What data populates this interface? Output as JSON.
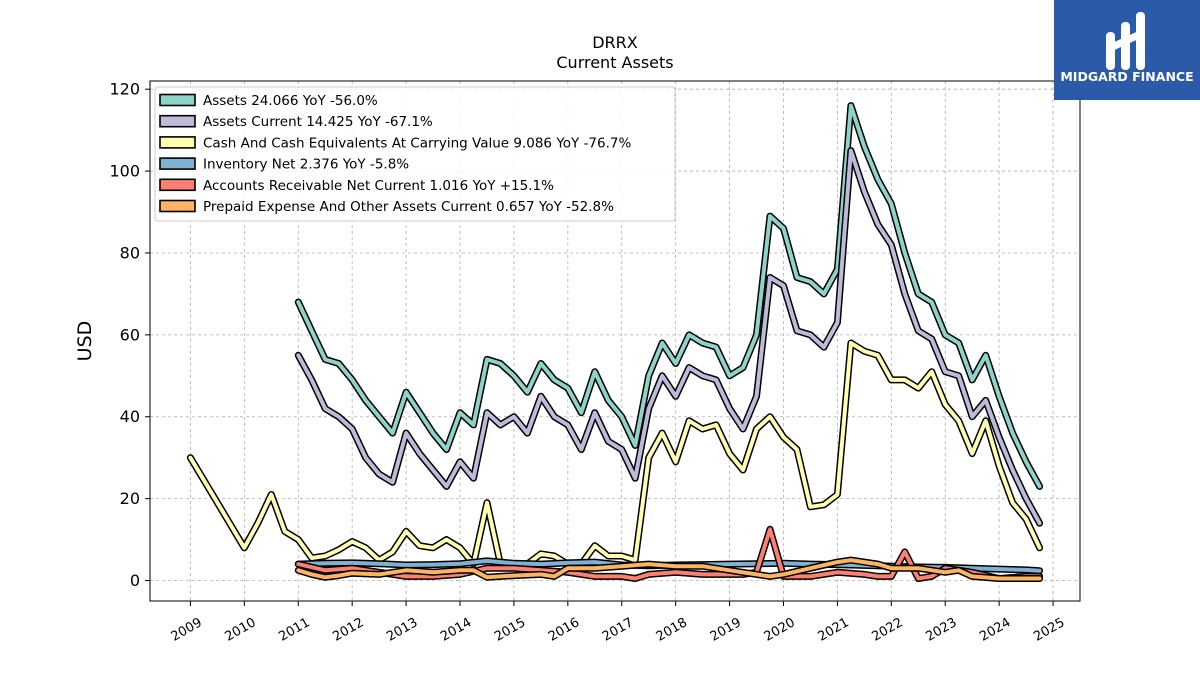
{
  "chart_data": {
    "type": "line",
    "title": "DRRX",
    "subtitle": "Current  Assets",
    "ylabel": "USD",
    "xlabel": "",
    "ylim": [
      -5,
      122
    ],
    "xlim": [
      2008.25,
      2025.5
    ],
    "yticks": [
      0,
      20,
      40,
      60,
      80,
      100,
      120
    ],
    "xticks": [
      2009,
      2010,
      2011,
      2012,
      2013,
      2014,
      2015,
      2016,
      2017,
      2018,
      2019,
      2020,
      2021,
      2022,
      2023,
      2024,
      2025
    ],
    "grid": true,
    "legend_position": "top-left",
    "series": [
      {
        "name": "Assets  24.066 YoY -56.0%",
        "color": "#8dd3c7",
        "x": [
          2011.0,
          2011.25,
          2011.5,
          2011.75,
          2012.0,
          2012.25,
          2012.5,
          2012.75,
          2013.0,
          2013.25,
          2013.5,
          2013.75,
          2014.0,
          2014.25,
          2014.5,
          2014.75,
          2015.0,
          2015.25,
          2015.5,
          2015.75,
          2016.0,
          2016.25,
          2016.5,
          2016.75,
          2017.0,
          2017.25,
          2017.5,
          2017.75,
          2018.0,
          2018.25,
          2018.5,
          2018.75,
          2019.0,
          2019.25,
          2019.5,
          2019.75,
          2020.0,
          2020.25,
          2020.5,
          2020.75,
          2021.0,
          2021.25,
          2021.5,
          2021.75,
          2022.0,
          2022.25,
          2022.5,
          2022.75,
          2023.0,
          2023.25,
          2023.5,
          2023.75,
          2024.0,
          2024.25,
          2024.5,
          2024.75
        ],
        "y": [
          68,
          61,
          54,
          53,
          49,
          44,
          40,
          36,
          46,
          41,
          36,
          32,
          41,
          38,
          54,
          53,
          50,
          46,
          53,
          49,
          47,
          41,
          51,
          44,
          40,
          33,
          50,
          58,
          53,
          60,
          58,
          57,
          50,
          52,
          60,
          89,
          86,
          74,
          73,
          70,
          76,
          116,
          106,
          98,
          92,
          80,
          70,
          68,
          60,
          58,
          49,
          55,
          45,
          36,
          29,
          23
        ]
      },
      {
        "name": "Assets Current  14.425 YoY -67.1%",
        "color": "#bebada",
        "x": [
          2011.0,
          2011.25,
          2011.5,
          2011.75,
          2012.0,
          2012.25,
          2012.5,
          2012.75,
          2013.0,
          2013.25,
          2013.5,
          2013.75,
          2014.0,
          2014.25,
          2014.5,
          2014.75,
          2015.0,
          2015.25,
          2015.5,
          2015.75,
          2016.0,
          2016.25,
          2016.5,
          2016.75,
          2017.0,
          2017.25,
          2017.5,
          2017.75,
          2018.0,
          2018.25,
          2018.5,
          2018.75,
          2019.0,
          2019.25,
          2019.5,
          2019.75,
          2020.0,
          2020.25,
          2020.5,
          2020.75,
          2021.0,
          2021.25,
          2021.5,
          2021.75,
          2022.0,
          2022.25,
          2022.5,
          2022.75,
          2023.0,
          2023.25,
          2023.5,
          2023.75,
          2024.0,
          2024.25,
          2024.5,
          2024.75
        ],
        "y": [
          55,
          49,
          42,
          40,
          37,
          30,
          26,
          24,
          36,
          31,
          27,
          23,
          29,
          25,
          41,
          38,
          40,
          36,
          45,
          40,
          38,
          32,
          41,
          34,
          32,
          25,
          42,
          50,
          45,
          52,
          50,
          49,
          42,
          37,
          45,
          74,
          72,
          61,
          60,
          57,
          63,
          105,
          95,
          87,
          82,
          70,
          61,
          59,
          51,
          50,
          40,
          44,
          35,
          27,
          20,
          14
        ]
      },
      {
        "name": "Cash And Cash Equivalents At Carrying Value  9.086 YoY -76.7%",
        "color": "#ffffb3",
        "x": [
          2009.0,
          2009.5,
          2010.0,
          2010.25,
          2010.5,
          2010.75,
          2011.0,
          2011.25,
          2011.5,
          2011.75,
          2012.0,
          2012.25,
          2012.5,
          2012.75,
          2013.0,
          2013.25,
          2013.5,
          2013.75,
          2014.0,
          2014.25,
          2014.5,
          2014.75,
          2015.0,
          2015.25,
          2015.5,
          2015.75,
          2016.0,
          2016.25,
          2016.5,
          2016.75,
          2017.0,
          2017.25,
          2017.5,
          2017.75,
          2018.0,
          2018.25,
          2018.5,
          2018.75,
          2019.0,
          2019.25,
          2019.5,
          2019.75,
          2020.0,
          2020.25,
          2020.5,
          2020.75,
          2021.0,
          2021.25,
          2021.5,
          2021.75,
          2022.0,
          2022.25,
          2022.5,
          2022.75,
          2023.0,
          2023.25,
          2023.5,
          2023.75,
          2024.0,
          2024.25,
          2024.5,
          2024.75
        ],
        "y": [
          30,
          19,
          8,
          14,
          21,
          12,
          10,
          5.5,
          6,
          7.5,
          9.5,
          8,
          5,
          7,
          12,
          8.5,
          8,
          10,
          8,
          4,
          19,
          4,
          4,
          4,
          6.5,
          6,
          4,
          4,
          8.5,
          6,
          6,
          5,
          30,
          36,
          29,
          39,
          37,
          38,
          31,
          27,
          37,
          40,
          35,
          32,
          18,
          18.5,
          21,
          58,
          56,
          55,
          49,
          49,
          47,
          51,
          43,
          39,
          31,
          39,
          28,
          19,
          15,
          8
        ]
      },
      {
        "name": "Inventory Net  2.376 YoY -5.8%",
        "color": "#80b1d3",
        "x": [
          2011.0,
          2011.5,
          2012.0,
          2012.5,
          2013.0,
          2013.5,
          2014.0,
          2014.5,
          2015.0,
          2015.5,
          2016.0,
          2016.5,
          2017.0,
          2017.5,
          2018.0,
          2018.5,
          2019.0,
          2019.5,
          2020.0,
          2020.5,
          2021.0,
          2021.5,
          2022.0,
          2022.5,
          2023.0,
          2023.5,
          2024.0,
          2024.5,
          2024.75
        ],
        "y": [
          4,
          4.2,
          4.3,
          4.1,
          3.8,
          3.9,
          4.1,
          4.8,
          4.2,
          4.0,
          4.3,
          4.5,
          3.8,
          3.6,
          3.8,
          3.9,
          4.0,
          4.1,
          4.2,
          4.0,
          3.9,
          3.7,
          3.5,
          3.3,
          3.2,
          3.0,
          2.8,
          2.6,
          2.4
        ]
      },
      {
        "name": "Accounts Receivable Net Current  1.016 YoY +15.1%",
        "color": "#fb8072",
        "x": [
          2011.0,
          2011.5,
          2012.0,
          2012.5,
          2013.0,
          2013.5,
          2014.0,
          2014.5,
          2015.0,
          2015.5,
          2016.0,
          2016.5,
          2017.0,
          2017.25,
          2017.5,
          2018.0,
          2018.5,
          2019.0,
          2019.25,
          2019.5,
          2019.75,
          2020.0,
          2020.5,
          2021.0,
          2021.5,
          2021.75,
          2022.0,
          2022.25,
          2022.5,
          2022.75,
          2023.0,
          2023.5,
          2024.0,
          2024.5,
          2024.75
        ],
        "y": [
          4,
          2.5,
          3,
          2,
          1,
          1,
          1.5,
          3,
          3,
          2.5,
          2,
          1,
          1,
          0.5,
          1.5,
          2,
          1.5,
          1.5,
          1.5,
          2,
          12.5,
          1,
          1,
          2,
          1.5,
          1,
          1,
          7,
          0.5,
          1,
          3,
          2,
          0.5,
          1,
          1
        ]
      },
      {
        "name": "Prepaid Expense And Other Assets Current  0.657 YoY -52.8%",
        "color": "#fdb462",
        "x": [
          2011.0,
          2011.25,
          2011.5,
          2011.75,
          2012.0,
          2012.5,
          2013.0,
          2013.5,
          2014.0,
          2014.25,
          2014.5,
          2015.0,
          2015.5,
          2015.75,
          2016.0,
          2016.5,
          2017.0,
          2017.5,
          2018.0,
          2018.5,
          2019.0,
          2019.5,
          2019.75,
          2020.0,
          2020.5,
          2021.0,
          2021.25,
          2021.5,
          2021.75,
          2022.0,
          2022.5,
          2023.0,
          2023.25,
          2023.5,
          2024.0,
          2024.5,
          2024.75
        ],
        "y": [
          2.5,
          1.5,
          0.8,
          1.2,
          1.8,
          1.5,
          2.5,
          2.0,
          2.5,
          2.5,
          0.8,
          1.2,
          1.5,
          1.0,
          3.0,
          3.0,
          3.5,
          4.0,
          3.5,
          3.5,
          2.5,
          1.5,
          1.0,
          1.5,
          3.0,
          4.5,
          5.0,
          4.5,
          4.0,
          3.0,
          3.0,
          2.0,
          2.5,
          1.0,
          0.5,
          0.5,
          0.5
        ]
      }
    ]
  },
  "logo": {
    "text": "MIDGARD FINANCE",
    "background": "#2a5aa8"
  }
}
